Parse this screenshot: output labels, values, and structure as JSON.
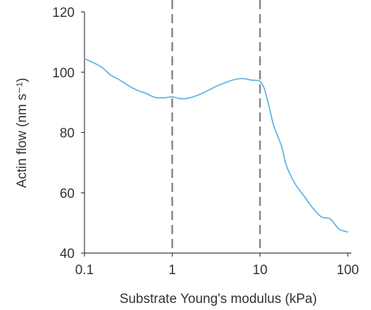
{
  "chart_data": {
    "type": "line",
    "title": "",
    "xlabel": "Substrate Young's modulus (kPa)",
    "ylabel": "Actin flow (nm s⁻¹)",
    "xscale": "log",
    "xlim": [
      0.1,
      100
    ],
    "ylim": [
      40,
      120
    ],
    "xticks": [
      0.1,
      1,
      10,
      100
    ],
    "xtick_labels": [
      "0.1",
      "1",
      "10",
      "100"
    ],
    "yticks": [
      40,
      60,
      80,
      100,
      120
    ],
    "ytick_labels": [
      "40",
      "60",
      "80",
      "100",
      "120"
    ],
    "grid": false,
    "legend": "none",
    "reference_lines_x": [
      1,
      10
    ],
    "reference_line_color": "#8c8c8c",
    "series": [
      {
        "color": "#64b6e0",
        "x": [
          0.1,
          0.13,
          0.16,
          0.2,
          0.25,
          0.32,
          0.4,
          0.5,
          0.63,
          0.8,
          1.0,
          1.26,
          1.58,
          2.0,
          2.5,
          3.16,
          4.0,
          5.0,
          6.3,
          7.9,
          9.0,
          10.0,
          11.2,
          12.6,
          14.1,
          15.8,
          17.8,
          20.0,
          25.1,
          31.6,
          39.8,
          50.1,
          63.1,
          79.4,
          100
        ],
        "y": [
          104.5,
          103,
          101.5,
          99,
          97.5,
          95.5,
          94,
          93,
          91.7,
          91.5,
          91.8,
          91.2,
          91.5,
          92.5,
          93.8,
          95.3,
          96.5,
          97.5,
          97.9,
          97.4,
          97.3,
          97,
          94.5,
          89,
          83,
          79,
          75,
          69,
          63,
          59,
          55,
          52,
          51.3,
          48,
          47
        ]
      }
    ]
  }
}
